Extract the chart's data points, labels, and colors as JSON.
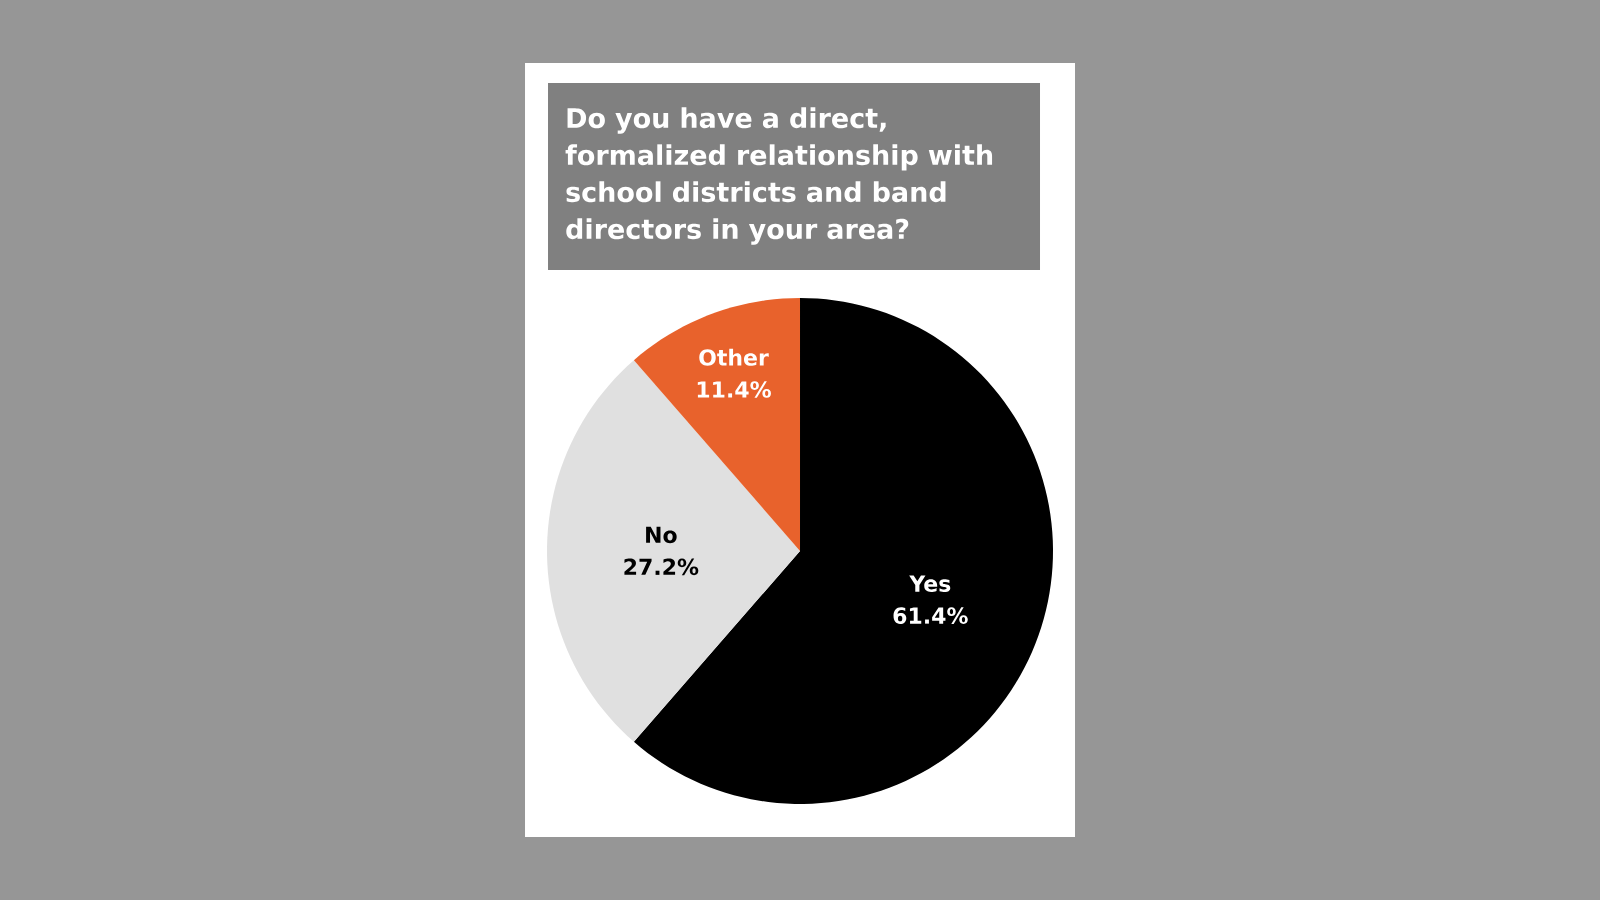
{
  "chart_data": {
    "type": "pie",
    "title": "Do you have a direct, formalized relationship with school districts and band directors in your area?",
    "categories": [
      "Yes",
      "No",
      "Other"
    ],
    "values": [
      61.4,
      27.2,
      11.4
    ],
    "value_labels": [
      "61.4%",
      "27.2%",
      "11.4%"
    ],
    "colors": [
      "#000000",
      "#e0e0e0",
      "#e8622c"
    ]
  }
}
